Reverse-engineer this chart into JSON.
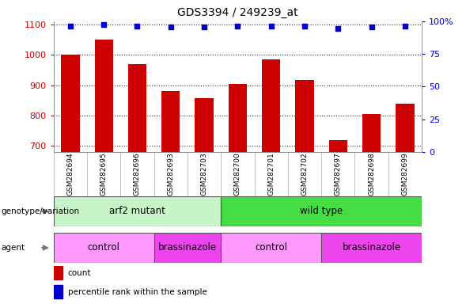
{
  "title": "GDS3394 / 249239_at",
  "samples": [
    "GSM282694",
    "GSM282695",
    "GSM282696",
    "GSM282693",
    "GSM282703",
    "GSM282700",
    "GSM282701",
    "GSM282702",
    "GSM282697",
    "GSM282698",
    "GSM282699"
  ],
  "bar_values": [
    1000,
    1050,
    970,
    880,
    858,
    905,
    985,
    918,
    718,
    805,
    840
  ],
  "percentile_values": [
    96.5,
    97.5,
    96.5,
    95.5,
    95.5,
    96.0,
    96.5,
    96.0,
    94.5,
    95.5,
    96.0
  ],
  "bar_color": "#cc0000",
  "dot_color": "#0000cc",
  "ylim_left": [
    680,
    1110
  ],
  "ylim_right": [
    0,
    100
  ],
  "yticks_left": [
    700,
    800,
    900,
    1000,
    1100
  ],
  "yticks_right": [
    0,
    25,
    50,
    75,
    100
  ],
  "yticklabels_right": [
    "0",
    "25",
    "50",
    "75",
    "100%"
  ],
  "genotype_groups": [
    {
      "label": "arf2 mutant",
      "start": 0,
      "end": 5,
      "color": "#c8f5c8"
    },
    {
      "label": "wild type",
      "start": 5,
      "end": 11,
      "color": "#44dd44"
    }
  ],
  "agent_groups": [
    {
      "label": "control",
      "start": 0,
      "end": 3,
      "color": "#ff99ff"
    },
    {
      "label": "brassinazole",
      "start": 3,
      "end": 5,
      "color": "#ee44ee"
    },
    {
      "label": "control",
      "start": 5,
      "end": 8,
      "color": "#ff99ff"
    },
    {
      "label": "brassinazole",
      "start": 8,
      "end": 11,
      "color": "#ee44ee"
    }
  ],
  "legend_items": [
    {
      "label": "count",
      "color": "#cc0000"
    },
    {
      "label": "percentile rank within the sample",
      "color": "#0000cc"
    }
  ],
  "left_label_color": "#cc0000",
  "right_label_color": "#0000cc",
  "xtick_bg_color": "#d8d8d8",
  "grid_color": "#333333",
  "plot_bg_color": "#ffffff"
}
